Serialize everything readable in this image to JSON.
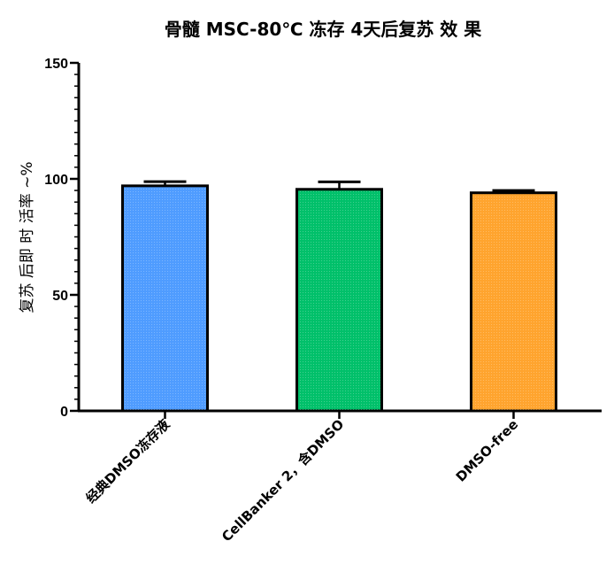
{
  "chart_data": {
    "type": "bar",
    "title": "骨髓 MSC-80℃ 冻存 4天后复苏 效 果",
    "ylabel": "复苏 后即 时 活率 ~%",
    "xlabel": "",
    "ylim": [
      0,
      150
    ],
    "yticks": [
      0,
      50,
      100,
      150
    ],
    "minor_tick_step": 5,
    "categories": [
      "经典DMSO冻存液",
      "CellBanker 2，含DMSO",
      "DMSO-free"
    ],
    "values": [
      97,
      95.5,
      94
    ],
    "errors": [
      1.8,
      3.2,
      1.0
    ],
    "colors": [
      "#4f9cff",
      "#00c06a",
      "#ffa42e"
    ],
    "grid": false,
    "legend": "none"
  }
}
